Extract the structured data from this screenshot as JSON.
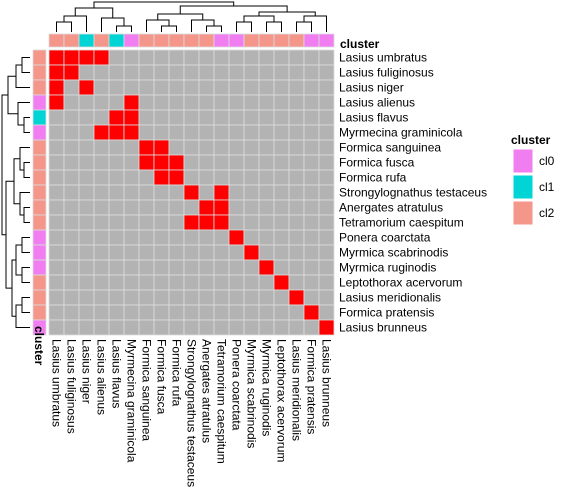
{
  "chart_data": {
    "type": "heatmap",
    "annotation_title": "cluster",
    "legend": {
      "title": "cluster",
      "entries": [
        {
          "label": "cl0",
          "color": "#F07EF0"
        },
        {
          "label": "cl1",
          "color": "#00D4D4"
        },
        {
          "label": "cl2",
          "color": "#F5968A"
        }
      ],
      "placement": "right"
    },
    "colors": {
      "cell_on": "#FF0000",
      "cell_off": "#B3B3B3",
      "grid": "#DDDDDD",
      "dendrogram": "#000000"
    },
    "labels": [
      "Lasius umbratus",
      "Lasius fuliginosus",
      "Lasius niger",
      "Lasius alienus",
      "Lasius flavus",
      "Myrmecina graminicola",
      "Formica sanguinea",
      "Formica fusca",
      "Formica rufa",
      "Strongylognathus testaceus",
      "Anergates atratulus",
      "Tetramorium caespitum",
      "Ponera coarctata",
      "Myrmica scabrinodis",
      "Myrmica ruginodis",
      "Leptothorax acervorum",
      "Lasius meridionalis",
      "Formica pratensis",
      "Lasius brunneus"
    ],
    "row_clusters": [
      "cl2",
      "cl2",
      "cl2",
      "cl0",
      "cl1",
      "cl0",
      "cl2",
      "cl2",
      "cl2",
      "cl2",
      "cl2",
      "cl2",
      "cl0",
      "cl0",
      "cl0",
      "cl2",
      "cl2",
      "cl2",
      "cl0"
    ],
    "col_clusters": [
      "cl2",
      "cl2",
      "cl1",
      "cl2",
      "cl1",
      "cl0",
      "cl2",
      "cl2",
      "cl2",
      "cl2",
      "cl2",
      "cl0",
      "cl0",
      "cl2",
      "cl2",
      "cl2",
      "cl2",
      "cl0",
      "cl0"
    ],
    "matrix": [
      [
        1,
        1,
        1,
        1,
        0,
        0,
        0,
        0,
        0,
        0,
        0,
        0,
        0,
        0,
        0,
        0,
        0,
        0,
        0
      ],
      [
        1,
        1,
        0,
        0,
        0,
        0,
        0,
        0,
        0,
        0,
        0,
        0,
        0,
        0,
        0,
        0,
        0,
        0,
        0
      ],
      [
        1,
        0,
        1,
        0,
        0,
        0,
        0,
        0,
        0,
        0,
        0,
        0,
        0,
        0,
        0,
        0,
        0,
        0,
        0
      ],
      [
        1,
        0,
        0,
        0,
        0,
        1,
        0,
        0,
        0,
        0,
        0,
        0,
        0,
        0,
        0,
        0,
        0,
        0,
        0
      ],
      [
        0,
        0,
        0,
        0,
        1,
        1,
        0,
        0,
        0,
        0,
        0,
        0,
        0,
        0,
        0,
        0,
        0,
        0,
        0
      ],
      [
        0,
        0,
        0,
        1,
        1,
        1,
        0,
        0,
        0,
        0,
        0,
        0,
        0,
        0,
        0,
        0,
        0,
        0,
        0
      ],
      [
        0,
        0,
        0,
        0,
        0,
        0,
        1,
        1,
        0,
        0,
        0,
        0,
        0,
        0,
        0,
        0,
        0,
        0,
        0
      ],
      [
        0,
        0,
        0,
        0,
        0,
        0,
        1,
        1,
        1,
        0,
        0,
        0,
        0,
        0,
        0,
        0,
        0,
        0,
        0
      ],
      [
        0,
        0,
        0,
        0,
        0,
        0,
        0,
        1,
        1,
        0,
        0,
        0,
        0,
        0,
        0,
        0,
        0,
        0,
        0
      ],
      [
        0,
        0,
        0,
        0,
        0,
        0,
        0,
        0,
        0,
        1,
        0,
        1,
        0,
        0,
        0,
        0,
        0,
        0,
        0
      ],
      [
        0,
        0,
        0,
        0,
        0,
        0,
        0,
        0,
        0,
        0,
        1,
        1,
        0,
        0,
        0,
        0,
        0,
        0,
        0
      ],
      [
        0,
        0,
        0,
        0,
        0,
        0,
        0,
        0,
        0,
        1,
        1,
        1,
        0,
        0,
        0,
        0,
        0,
        0,
        0
      ],
      [
        0,
        0,
        0,
        0,
        0,
        0,
        0,
        0,
        0,
        0,
        0,
        0,
        1,
        0,
        0,
        0,
        0,
        0,
        0
      ],
      [
        0,
        0,
        0,
        0,
        0,
        0,
        0,
        0,
        0,
        0,
        0,
        0,
        0,
        1,
        0,
        0,
        0,
        0,
        0
      ],
      [
        0,
        0,
        0,
        0,
        0,
        0,
        0,
        0,
        0,
        0,
        0,
        0,
        0,
        0,
        1,
        0,
        0,
        0,
        0
      ],
      [
        0,
        0,
        0,
        0,
        0,
        0,
        0,
        0,
        0,
        0,
        0,
        0,
        0,
        0,
        0,
        1,
        0,
        0,
        0
      ],
      [
        0,
        0,
        0,
        0,
        0,
        0,
        0,
        0,
        0,
        0,
        0,
        0,
        0,
        0,
        0,
        0,
        1,
        0,
        0
      ],
      [
        0,
        0,
        0,
        0,
        0,
        0,
        0,
        0,
        0,
        0,
        0,
        0,
        0,
        0,
        0,
        0,
        0,
        1,
        0
      ],
      [
        0,
        0,
        0,
        0,
        0,
        0,
        0,
        0,
        0,
        0,
        0,
        0,
        0,
        0,
        0,
        0,
        0,
        0,
        1
      ]
    ]
  }
}
